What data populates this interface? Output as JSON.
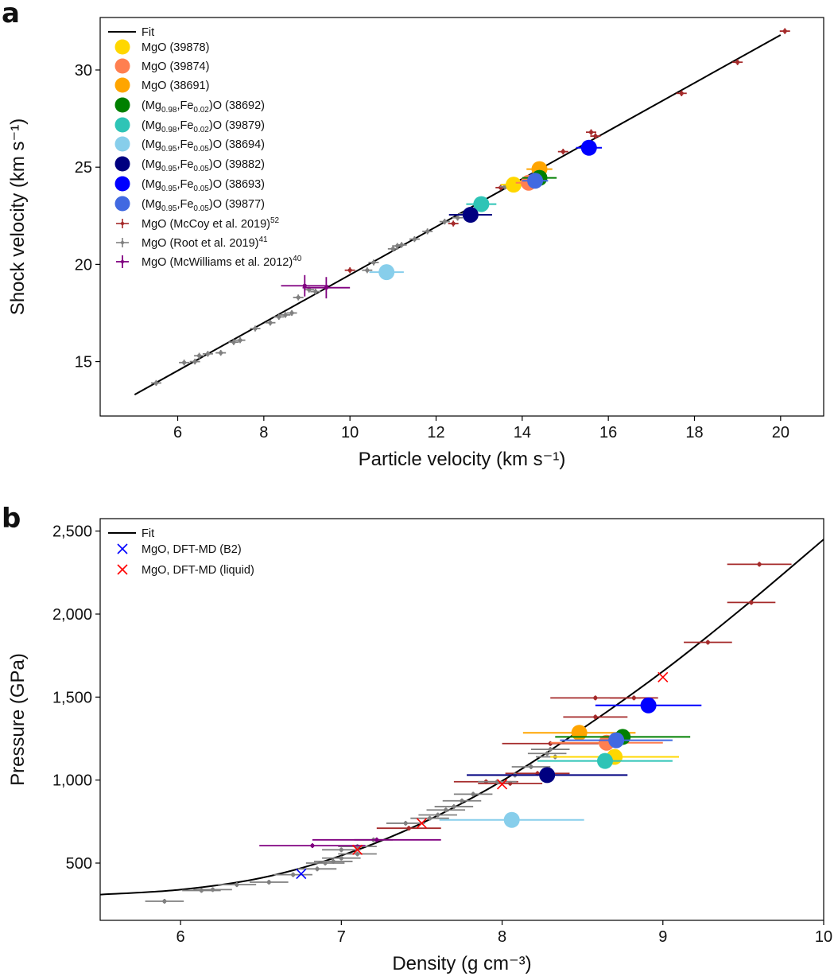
{
  "chart_data": [
    {
      "panel": "a",
      "type": "scatter",
      "xlabel": "Particle velocity (km s⁻¹)",
      "ylabel": "Shock velocity (km s⁻¹)",
      "xlim": [
        4.2,
        21.0
      ],
      "ylim": [
        12.2,
        32.7
      ],
      "xticks": [
        6,
        8,
        10,
        12,
        14,
        16,
        18,
        20
      ],
      "yticks": [
        15,
        20,
        25,
        30
      ],
      "fit": {
        "name": "Fit",
        "x": [
          5.0,
          20.0
        ],
        "y": [
          13.3,
          31.8
        ]
      },
      "legend_labels": {
        "fit": "Fit",
        "mgo_39878": "MgO (39878)",
        "mgo_39874": "MgO (39874)",
        "mgo_38691": "MgO (38691)",
        "fe02_38692": "(Mg0.98,Fe0.02)O (38692)",
        "fe02_39879": "(Mg0.98,Fe0.02)O (39879)",
        "fe05_38694": "(Mg0.95,Fe0.05)O (38694)",
        "fe05_39882": "(Mg0.95,Fe0.05)O (39882)",
        "fe05_38693": "(Mg0.95,Fe0.05)O (38693)",
        "fe05_39877": "(Mg0.95,Fe0.05)O (39877)",
        "mccoy": "MgO (McCoy et al. 2019)52",
        "root": "MgO (Root et al. 2019)41",
        "mcwilliams": "MgO (McWilliams et al. 2012)40"
      },
      "series": [
        {
          "name": "MgO (39878)",
          "color": "#FFD700",
          "x": 13.8,
          "y": 24.1,
          "xerr": 0.3
        },
        {
          "name": "MgO (39874)",
          "color": "#FF7F50",
          "x": 14.15,
          "y": 24.2,
          "xerr": 0.3
        },
        {
          "name": "MgO (38691)",
          "color": "#FFA500",
          "x": 14.4,
          "y": 24.9,
          "xerr": 0.3
        },
        {
          "name": "(Mg0.98,Fe0.02)O (38692)",
          "color": "#008000",
          "x": 14.4,
          "y": 24.45,
          "xerr": 0.4
        },
        {
          "name": "(Mg0.98,Fe0.02)O (39879)",
          "color": "#2EC4B6",
          "x": 13.05,
          "y": 23.1,
          "xerr": 0.35
        },
        {
          "name": "(Mg0.95,Fe0.05)O (38694)",
          "color": "#87CEEB",
          "x": 10.85,
          "y": 19.6,
          "xerr": 0.4
        },
        {
          "name": "(Mg0.95,Fe0.05)O (39882)",
          "color": "#000080",
          "x": 12.8,
          "y": 22.55,
          "xerr": 0.5
        },
        {
          "name": "(Mg0.95,Fe0.05)O (38693)",
          "color": "#0000FF",
          "x": 15.55,
          "y": 26.0,
          "xerr": 0.3
        },
        {
          "name": "(Mg0.95,Fe0.05)O (39877)",
          "color": "#4169E1",
          "x": 14.3,
          "y": 24.3,
          "xerr": 0.3
        },
        {
          "name": "MgO (McCoy et al. 2019)",
          "color": "#A52A2A",
          "marker": "+",
          "points": [
            [
              10.0,
              19.7
            ],
            [
              12.4,
              22.1
            ],
            [
              13.5,
              23.95
            ],
            [
              13.8,
              24.0
            ],
            [
              14.95,
              25.8
            ],
            [
              15.6,
              26.8
            ],
            [
              15.7,
              26.6
            ],
            [
              17.7,
              28.8
            ],
            [
              19.0,
              30.4
            ],
            [
              20.1,
              32.0
            ]
          ]
        },
        {
          "name": "MgO (Root et al. 2019)",
          "color": "#808080",
          "marker": "+",
          "points": [
            [
              5.5,
              13.9
            ],
            [
              6.15,
              14.95
            ],
            [
              6.4,
              15.0
            ],
            [
              6.5,
              15.3
            ],
            [
              6.7,
              15.4
            ],
            [
              7.0,
              15.45
            ],
            [
              7.3,
              16.0
            ],
            [
              7.45,
              16.1
            ],
            [
              7.8,
              16.7
            ],
            [
              8.15,
              17.0
            ],
            [
              8.35,
              17.3
            ],
            [
              8.5,
              17.4
            ],
            [
              8.65,
              17.5
            ],
            [
              8.8,
              18.3
            ],
            [
              9.05,
              18.7
            ],
            [
              9.2,
              18.6
            ],
            [
              10.4,
              19.7
            ],
            [
              10.55,
              20.1
            ],
            [
              11.0,
              20.8
            ],
            [
              11.1,
              20.95
            ],
            [
              11.2,
              21.0
            ],
            [
              11.5,
              21.3
            ],
            [
              11.8,
              21.7
            ],
            [
              12.2,
              22.2
            ],
            [
              12.5,
              22.4
            ],
            [
              12.65,
              22.6
            ],
            [
              13.6,
              24.0
            ]
          ]
        },
        {
          "name": "MgO (McWilliams et al. 2012)",
          "color": "#800080",
          "marker": "+",
          "points": [
            [
              8.95,
              18.9
            ],
            [
              9.45,
              18.8
            ]
          ],
          "xerr": 0.55,
          "yerr": 0.55
        }
      ]
    },
    {
      "panel": "b",
      "type": "scatter",
      "xlabel": "Density (g cm⁻³)",
      "ylabel": "Pressure (GPa)",
      "xlim": [
        5.5,
        10.0
      ],
      "ylim": [
        155,
        2575
      ],
      "xticks": [
        6,
        7,
        8,
        9,
        10
      ],
      "yticks": [
        500,
        1000,
        1500,
        2000,
        2500
      ],
      "ytick_labels": [
        "500",
        "1,000",
        "1,500",
        "2,000",
        "2,500"
      ],
      "fit": {
        "name": "Fit",
        "x": [
          5.5,
          6.0,
          6.5,
          7.0,
          7.5,
          8.0,
          8.5,
          9.0,
          9.5,
          10.0
        ],
        "y": [
          310,
          340,
          410,
          545,
          740,
          995,
          1310,
          1655,
          2040,
          2450
        ]
      },
      "legend_labels": {
        "fit": "Fit",
        "b2": "MgO, DFT-MD (B2)",
        "liquid": "MgO, DFT-MD (liquid)"
      },
      "series": [
        {
          "name": "MgO (39878)",
          "color": "#FFD700",
          "x": 8.7,
          "y": 1140,
          "xerr": 0.4
        },
        {
          "name": "MgO (39874)",
          "color": "#FF7F50",
          "x": 8.65,
          "y": 1225,
          "xerr": 0.35
        },
        {
          "name": "MgO (38691)",
          "color": "#FFA500",
          "x": 8.48,
          "y": 1285,
          "xerr": 0.35
        },
        {
          "name": "(Mg0.98,Fe0.02)O (38692)",
          "color": "#008000",
          "x": 8.75,
          "y": 1260,
          "xerr": 0.42
        },
        {
          "name": "(Mg0.98,Fe0.02)O (39879)",
          "color": "#2EC4B6",
          "x": 8.64,
          "y": 1115,
          "xerr": 0.42
        },
        {
          "name": "(Mg0.95,Fe0.05)O (38694)",
          "color": "#87CEEB",
          "x": 8.06,
          "y": 760,
          "xerr": 0.45
        },
        {
          "name": "(Mg0.95,Fe0.05)O (39882)",
          "color": "#000080",
          "x": 8.28,
          "y": 1030,
          "xerr": 0.5
        },
        {
          "name": "(Mg0.95,Fe0.05)O (38693)",
          "color": "#0000FF",
          "x": 8.91,
          "y": 1450,
          "xerr": 0.33
        },
        {
          "name": "(Mg0.95,Fe0.05)O (39877)",
          "color": "#4169E1",
          "x": 8.71,
          "y": 1240,
          "xerr": 0.35
        },
        {
          "name": "MgO (McCoy et al. 2019)",
          "color": "#A52A2A",
          "marker": "+",
          "points": [
            [
              7.42,
              710,
              0.2
            ],
            [
              7.9,
              990,
              0.2
            ],
            [
              8.05,
              980,
              0.2
            ],
            [
              8.22,
              1040,
              0.2
            ],
            [
              8.3,
              1220,
              0.3
            ],
            [
              8.58,
              1380,
              0.2
            ],
            [
              8.58,
              1495,
              0.28
            ],
            [
              8.82,
              1495,
              0.15
            ],
            [
              9.28,
              1830,
              0.15
            ],
            [
              9.55,
              2070,
              0.15
            ],
            [
              9.6,
              2300,
              0.2
            ]
          ]
        },
        {
          "name": "MgO (Root et al. 2019)",
          "color": "#808080",
          "marker": "+",
          "points": [
            [
              5.9,
              270
            ],
            [
              6.13,
              335
            ],
            [
              6.2,
              340
            ],
            [
              6.35,
              370
            ],
            [
              6.55,
              385
            ],
            [
              6.7,
              430
            ],
            [
              6.85,
              465
            ],
            [
              6.9,
              500
            ],
            [
              6.95,
              510
            ],
            [
              7.0,
              530
            ],
            [
              7.0,
              580
            ],
            [
              7.1,
              555
            ],
            [
              7.1,
              600
            ],
            [
              7.2,
              640
            ],
            [
              7.4,
              740
            ],
            [
              7.55,
              770
            ],
            [
              7.6,
              790
            ],
            [
              7.65,
              820
            ],
            [
              7.7,
              840
            ],
            [
              7.75,
              875
            ],
            [
              7.82,
              915
            ],
            [
              7.97,
              990
            ],
            [
              8.08,
              1030
            ],
            [
              8.18,
              1080
            ],
            [
              8.28,
              1160
            ],
            [
              8.3,
              1185
            ],
            [
              8.33,
              1140
            ]
          ]
        },
        {
          "name": "MgO (McWilliams et al. 2012)",
          "color": "#800080",
          "marker": "+",
          "points": [
            [
              6.82,
              605,
              0.33
            ],
            [
              7.22,
              640,
              0.4
            ]
          ]
        },
        {
          "name": "MgO, DFT-MD (B2)",
          "color": "#0000FF",
          "marker": "x",
          "points": [
            [
              6.75,
              435
            ]
          ]
        },
        {
          "name": "MgO, DFT-MD (liquid)",
          "color": "#FF0000",
          "marker": "x",
          "points": [
            [
              7.1,
              580
            ],
            [
              7.5,
              740
            ],
            [
              8.0,
              975
            ],
            [
              9.0,
              1620
            ]
          ]
        }
      ]
    }
  ],
  "panel_letters": {
    "a": "a",
    "b": "b"
  }
}
